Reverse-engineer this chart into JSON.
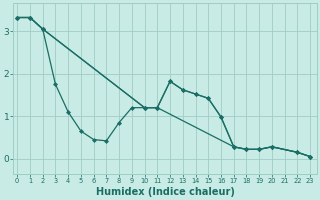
{
  "xlabel": "Humidex (Indice chaleur)",
  "bg_color": "#c8ebe5",
  "grid_color": "#a0cdc7",
  "line_color": "#1a6e65",
  "marker": "D",
  "markersize": 2.0,
  "linewidth": 0.9,
  "lines": [
    {
      "x": [
        0,
        1,
        2,
        10,
        11,
        17,
        18,
        19,
        20,
        22,
        23
      ],
      "y": [
        3.32,
        3.32,
        3.05,
        1.2,
        1.2,
        0.28,
        0.22,
        0.22,
        0.28,
        0.15,
        0.05
      ]
    },
    {
      "x": [
        0,
        1,
        2,
        3,
        4,
        5,
        6,
        7,
        8,
        9,
        10,
        11,
        12,
        13,
        14,
        15,
        16,
        17,
        18,
        19,
        20,
        22,
        23
      ],
      "y": [
        3.32,
        3.32,
        3.05,
        1.75,
        1.1,
        0.65,
        0.45,
        0.42,
        0.85,
        1.2,
        1.2,
        1.2,
        1.82,
        1.62,
        1.52,
        1.42,
        0.98,
        0.28,
        0.22,
        0.22,
        0.28,
        0.15,
        0.05
      ]
    },
    {
      "x": [
        0,
        1,
        2,
        10,
        11,
        12,
        13,
        14,
        15,
        16,
        17,
        18,
        19,
        20,
        22,
        23
      ],
      "y": [
        3.32,
        3.32,
        3.05,
        1.2,
        1.2,
        1.82,
        1.62,
        1.52,
        1.42,
        0.98,
        0.28,
        0.22,
        0.22,
        0.28,
        0.15,
        0.05
      ]
    }
  ],
  "xlim": [
    -0.3,
    23.5
  ],
  "ylim": [
    -0.35,
    3.65
  ],
  "yticks": [
    0,
    1,
    2,
    3
  ],
  "xticks": [
    0,
    1,
    2,
    3,
    4,
    5,
    6,
    7,
    8,
    9,
    10,
    11,
    12,
    13,
    14,
    15,
    16,
    17,
    18,
    19,
    20,
    21,
    22,
    23
  ],
  "xtick_fontsize": 4.8,
  "ytick_fontsize": 6.5,
  "xlabel_fontsize": 7.0
}
